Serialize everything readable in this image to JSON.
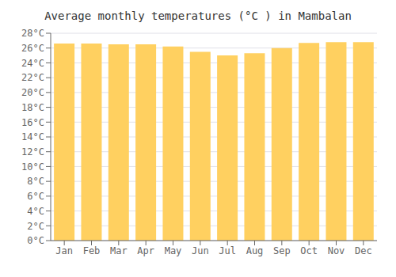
{
  "chart_data": {
    "type": "bar",
    "title": "Average monthly temperatures (°C ) in Mambalan",
    "categories": [
      "Jan",
      "Feb",
      "Mar",
      "Apr",
      "May",
      "Jun",
      "Jul",
      "Aug",
      "Sep",
      "Oct",
      "Nov",
      "Dec"
    ],
    "values": [
      26.6,
      26.6,
      26.5,
      26.5,
      26.2,
      25.5,
      25.0,
      25.3,
      26.0,
      26.7,
      26.8,
      26.8
    ],
    "color": "#FFD060",
    "ylim": [
      0,
      28
    ],
    "yticks": [
      {
        "value": 0,
        "label": "0°C"
      },
      {
        "value": 2,
        "label": "2°C"
      },
      {
        "value": 4,
        "label": "4°C"
      },
      {
        "value": 6,
        "label": "6°C"
      },
      {
        "value": 8,
        "label": "8°C"
      },
      {
        "value": 10,
        "label": "10°C"
      },
      {
        "value": 12,
        "label": "12°C"
      },
      {
        "value": 14,
        "label": "14°C"
      },
      {
        "value": 16,
        "label": "16°C"
      },
      {
        "value": 18,
        "label": "18°C"
      },
      {
        "value": 20,
        "label": "20°C"
      },
      {
        "value": 22,
        "label": "22°C"
      },
      {
        "value": 24,
        "label": "24°C"
      },
      {
        "value": 26,
        "label": "26°C"
      },
      {
        "value": 28,
        "label": "28°C"
      }
    ],
    "grid": true
  }
}
